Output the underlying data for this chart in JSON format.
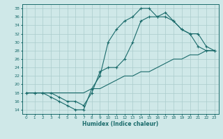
{
  "xlabel": "Humidex (Indice chaleur)",
  "ylabel": "",
  "bg_color": "#cfe8e8",
  "line_color": "#1a6b6b",
  "grid_color": "#aacccc",
  "xlim": [
    -0.5,
    23.5
  ],
  "ylim": [
    13,
    39
  ],
  "yticks": [
    14,
    16,
    18,
    20,
    22,
    24,
    26,
    28,
    30,
    32,
    34,
    36,
    38
  ],
  "xticks": [
    0,
    1,
    2,
    3,
    4,
    5,
    6,
    7,
    8,
    9,
    10,
    11,
    12,
    13,
    14,
    15,
    16,
    17,
    18,
    19,
    20,
    21,
    22,
    23
  ],
  "line1_x": [
    0,
    1,
    2,
    3,
    4,
    5,
    6,
    7,
    8,
    9,
    10,
    11,
    12,
    13,
    14,
    15,
    16,
    17,
    18,
    19,
    20,
    21,
    22,
    23
  ],
  "line1_y": [
    18,
    18,
    18,
    17,
    16,
    15,
    14,
    14,
    19,
    22,
    30,
    33,
    35,
    36,
    38,
    38,
    36,
    37,
    35,
    33,
    32,
    29,
    28,
    28
  ],
  "line2_x": [
    0,
    1,
    2,
    3,
    4,
    5,
    6,
    7,
    8,
    9,
    10,
    11,
    12,
    13,
    14,
    15,
    16,
    17,
    18,
    19,
    20,
    21,
    22,
    23
  ],
  "line2_y": [
    18,
    18,
    18,
    18,
    17,
    16,
    16,
    15,
    18,
    23,
    24,
    24,
    26,
    30,
    35,
    36,
    36,
    36,
    35,
    33,
    32,
    32,
    29,
    28
  ],
  "line3_x": [
    0,
    1,
    2,
    3,
    4,
    5,
    6,
    7,
    8,
    9,
    10,
    11,
    12,
    13,
    14,
    15,
    16,
    17,
    18,
    19,
    20,
    21,
    22,
    23
  ],
  "line3_y": [
    18,
    18,
    18,
    18,
    18,
    18,
    18,
    18,
    19,
    19,
    20,
    21,
    22,
    22,
    23,
    23,
    24,
    25,
    26,
    26,
    27,
    27,
    28,
    28
  ]
}
